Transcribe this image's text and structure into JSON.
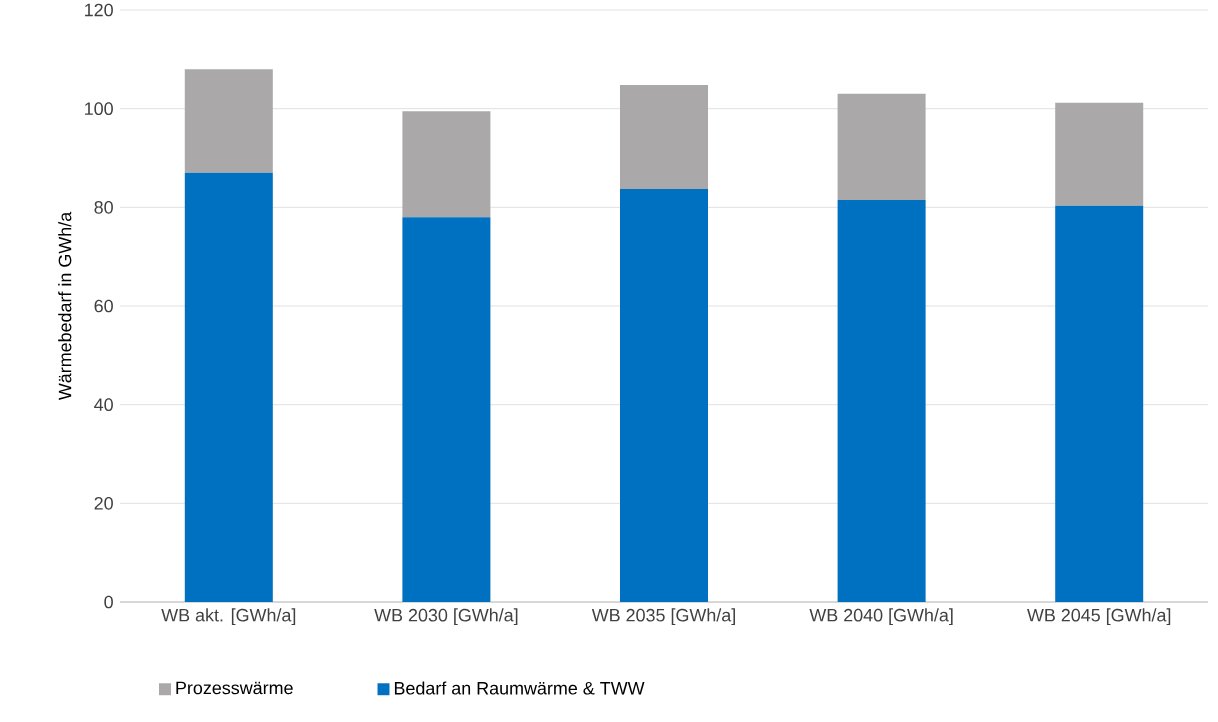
{
  "chart_data": {
    "type": "bar",
    "stacked": true,
    "ylabel": "Wärmebedarf in GWh/a",
    "categories": [
      "WB akt. [GWh/a]",
      "WB 2030 [GWh/a]",
      "WB 2035 [GWh/a]",
      "WB 2040 [GWh/a]",
      "WB 2045 [GWh/a]"
    ],
    "series": [
      {
        "name": "Bedarf an Raumwärme & TWW",
        "color": "#0070c0",
        "values": [
          87,
          78,
          83.7,
          81.5,
          80.3
        ]
      },
      {
        "name": "Prozesswärme",
        "color": "#aaa8a8",
        "values": [
          21,
          21.5,
          21.1,
          21.5,
          20.9
        ]
      }
    ],
    "ylim": [
      0,
      120
    ],
    "yticks": [
      0,
      20,
      40,
      60,
      80,
      100,
      120
    ],
    "grid": "y",
    "legend": "bottom"
  }
}
